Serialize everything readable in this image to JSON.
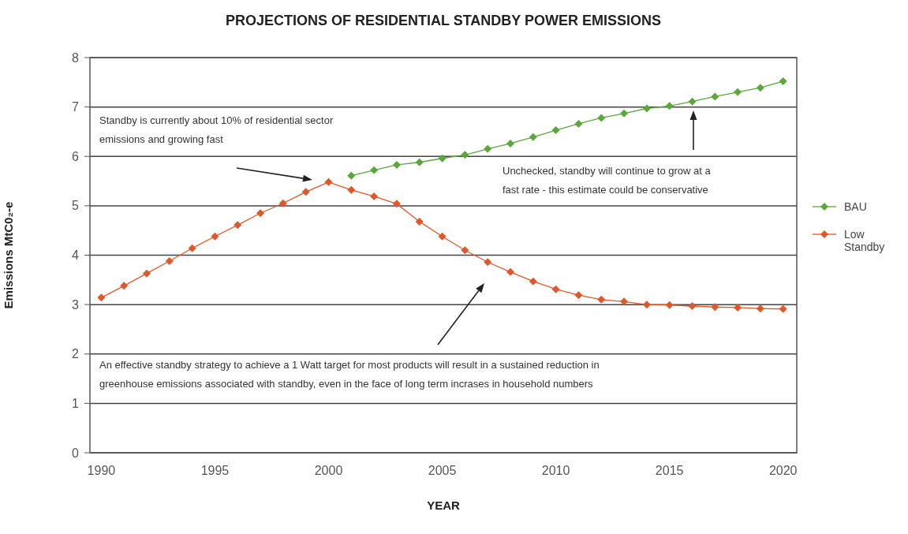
{
  "chart_data": {
    "type": "line",
    "title": "PROJECTIONS OF RESIDENTIAL STANDBY POWER EMISSIONS",
    "xlabel": "YEAR",
    "ylabel": "Emissions MtC0₂-e",
    "x": [
      1990,
      1991,
      1992,
      1993,
      1994,
      1995,
      1996,
      1997,
      1998,
      1999,
      2000,
      2001,
      2002,
      2003,
      2004,
      2005,
      2006,
      2007,
      2008,
      2009,
      2010,
      2011,
      2012,
      2013,
      2014,
      2015,
      2016,
      2017,
      2018,
      2019,
      2020
    ],
    "series": [
      {
        "name": "BAU",
        "color": "#5aa83b",
        "values": [
          null,
          null,
          null,
          null,
          null,
          null,
          null,
          null,
          null,
          null,
          null,
          5.61,
          5.72,
          5.83,
          5.88,
          5.96,
          6.03,
          6.15,
          6.26,
          6.39,
          6.53,
          6.66,
          6.78,
          6.87,
          6.97,
          7.02,
          7.11,
          7.21,
          7.3,
          7.39,
          7.52
        ]
      },
      {
        "name": "Low Standby",
        "color": "#e0582a",
        "values": [
          3.14,
          3.38,
          3.63,
          3.88,
          4.14,
          4.38,
          4.61,
          4.85,
          5.05,
          5.28,
          5.48,
          5.32,
          5.19,
          5.04,
          4.68,
          4.38,
          4.1,
          3.86,
          3.66,
          3.47,
          3.31,
          3.19,
          3.1,
          3.06,
          3.0,
          2.99,
          2.97,
          2.95,
          2.94,
          2.92,
          2.91
        ]
      }
    ],
    "xlim": [
      1989.5,
      2020.6
    ],
    "xticks": [
      1990,
      1995,
      2000,
      2005,
      2010,
      2015,
      2020
    ],
    "ylim": [
      0,
      8
    ],
    "yticks": [
      0,
      1,
      2,
      3,
      4,
      5,
      6,
      7,
      8
    ],
    "grid": "y",
    "legend": "right",
    "marker": "diamond",
    "line_style": "solid",
    "annotations": [
      "Standby is currently about 10% of residential sector emissions and growing fast",
      "Unchecked, standby will continue to grow at a fast rate - this estimate could be conservative",
      "An effective standby strategy to achieve a 1 Watt target for most products will result in a sustained reduction in greenhouse emissions associated with standby, even in the face of long term incrases in household numbers"
    ]
  }
}
